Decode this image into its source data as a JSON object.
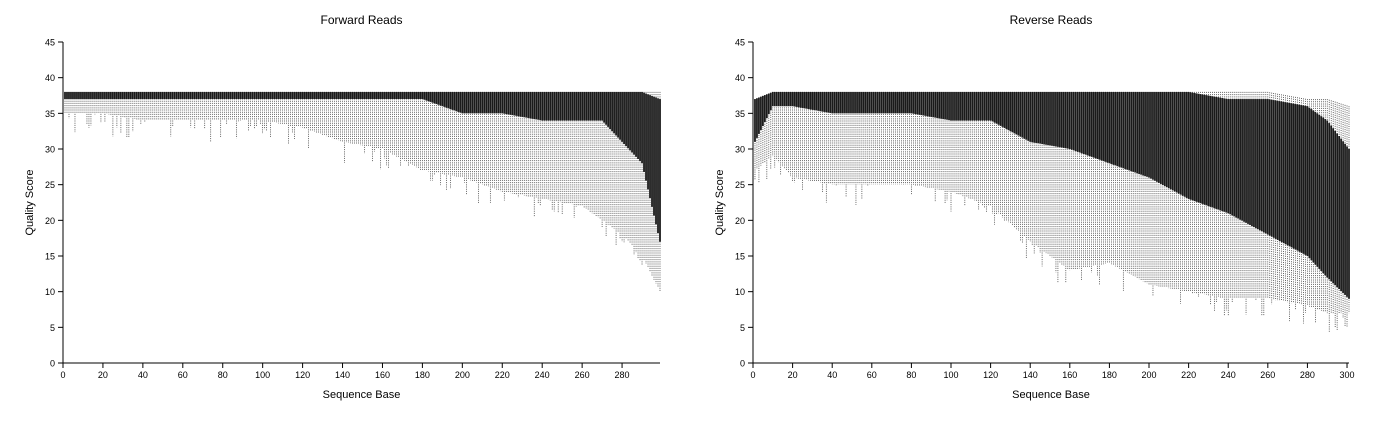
{
  "chart_data": [
    {
      "type": "box",
      "title": "Forward Reads",
      "xlabel": "Sequence Base",
      "ylabel": "Quality Score",
      "xlim": [
        0,
        299
      ],
      "ylim": [
        0,
        45
      ],
      "xticks": [
        0,
        20,
        40,
        60,
        80,
        100,
        120,
        140,
        160,
        180,
        200,
        220,
        240,
        260,
        280
      ],
      "yticks": [
        0,
        5,
        10,
        15,
        20,
        25,
        30,
        35,
        40,
        45
      ],
      "grid": false,
      "profile": {
        "x": [
          1,
          20,
          40,
          60,
          80,
          100,
          120,
          140,
          160,
          180,
          200,
          220,
          240,
          260,
          270,
          280,
          290,
          299
        ],
        "top": [
          38,
          38,
          38,
          38,
          38,
          38,
          38,
          38,
          38,
          38,
          38,
          38,
          38,
          38,
          38,
          38,
          38,
          38
        ],
        "q3": [
          38,
          38,
          38,
          38,
          38,
          38,
          38,
          38,
          38,
          38,
          38,
          38,
          38,
          38,
          38,
          38,
          38,
          37
        ],
        "median": [
          38,
          38,
          38,
          38,
          38,
          38,
          38,
          38,
          38,
          38,
          37,
          37,
          37,
          36,
          35,
          34,
          31,
          27
        ],
        "q1": [
          37,
          37,
          37,
          37,
          37,
          37,
          37,
          37,
          37,
          37,
          35,
          35,
          34,
          34,
          34,
          31,
          28,
          17
        ],
        "lower": [
          35,
          35,
          34,
          34,
          34,
          34,
          33,
          31,
          30,
          27,
          26,
          24,
          23,
          22,
          20,
          18,
          15,
          10
        ]
      }
    },
    {
      "type": "box",
      "title": "Reverse Reads",
      "xlabel": "Sequence Base",
      "ylabel": "Quality Score",
      "xlim": [
        0,
        301
      ],
      "ylim": [
        0,
        45
      ],
      "xticks": [
        0,
        20,
        40,
        60,
        80,
        100,
        120,
        140,
        160,
        180,
        200,
        220,
        240,
        260,
        280,
        300
      ],
      "yticks": [
        0,
        5,
        10,
        15,
        20,
        25,
        30,
        35,
        40,
        45
      ],
      "grid": false,
      "profile": {
        "x": [
          1,
          10,
          20,
          40,
          60,
          80,
          100,
          120,
          140,
          160,
          180,
          200,
          220,
          240,
          260,
          280,
          290,
          301
        ],
        "top": [
          37,
          38,
          38,
          38,
          38,
          38,
          38,
          38,
          38,
          38,
          38,
          38,
          38,
          38,
          38,
          37,
          37,
          36
        ],
        "q3": [
          37,
          38,
          38,
          38,
          38,
          38,
          38,
          38,
          38,
          38,
          38,
          38,
          38,
          37,
          37,
          36,
          34,
          30
        ],
        "median": [
          34,
          37,
          37,
          37,
          37,
          37,
          37,
          37,
          36,
          35,
          34,
          33,
          30,
          28,
          25,
          22,
          19,
          13
        ],
        "q1": [
          31,
          36,
          36,
          35,
          35,
          35,
          34,
          34,
          31,
          30,
          28,
          26,
          23,
          21,
          18,
          15,
          12,
          9
        ],
        "lower": [
          27,
          29,
          26,
          25,
          25,
          25,
          24,
          22,
          17,
          13,
          14,
          11,
          10,
          9,
          9,
          8,
          7,
          7
        ]
      }
    }
  ]
}
